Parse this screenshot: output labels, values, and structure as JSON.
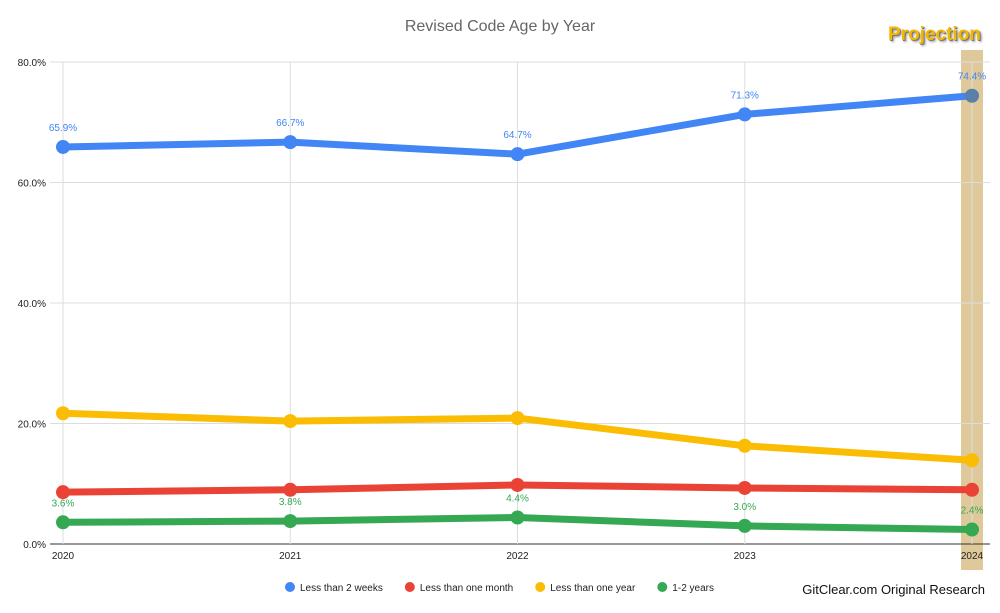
{
  "chart_data": {
    "type": "line",
    "title": "Revised Code Age by Year",
    "x": [
      "2020",
      "2021",
      "2022",
      "2023",
      "2024"
    ],
    "ylim": [
      0,
      80
    ],
    "yticks": [
      "0.0%",
      "20.0%",
      "40.0%",
      "60.0%",
      "80.0%"
    ],
    "grid": true,
    "legend": "bottom",
    "series": [
      {
        "name": "Less than 2 weeks",
        "color": "#4285f4",
        "values": [
          65.9,
          66.7,
          64.7,
          71.3,
          74.4
        ],
        "labels": [
          "65.9%",
          "66.7%",
          "64.7%",
          "71.3%",
          "74.4%"
        ]
      },
      {
        "name": "Less than one month",
        "color": "#ea4335",
        "values": [
          8.6,
          9.0,
          9.8,
          9.3,
          9.0
        ]
      },
      {
        "name": "Less than one year",
        "color": "#fbbc04",
        "values": [
          21.7,
          20.4,
          20.9,
          16.3,
          13.9
        ]
      },
      {
        "name": "1-2 years",
        "color": "#34a853",
        "values": [
          3.6,
          3.8,
          4.4,
          3.0,
          2.4
        ],
        "labels": [
          "3.6%",
          "3.8%",
          "4.4%",
          "3.0%",
          "2.4%"
        ]
      }
    ],
    "annotations": {
      "projection": "Projection",
      "projection_year": "2024",
      "projection_color": "#d9c089"
    }
  },
  "footer": {
    "source": "GitClear.com Original Research"
  }
}
